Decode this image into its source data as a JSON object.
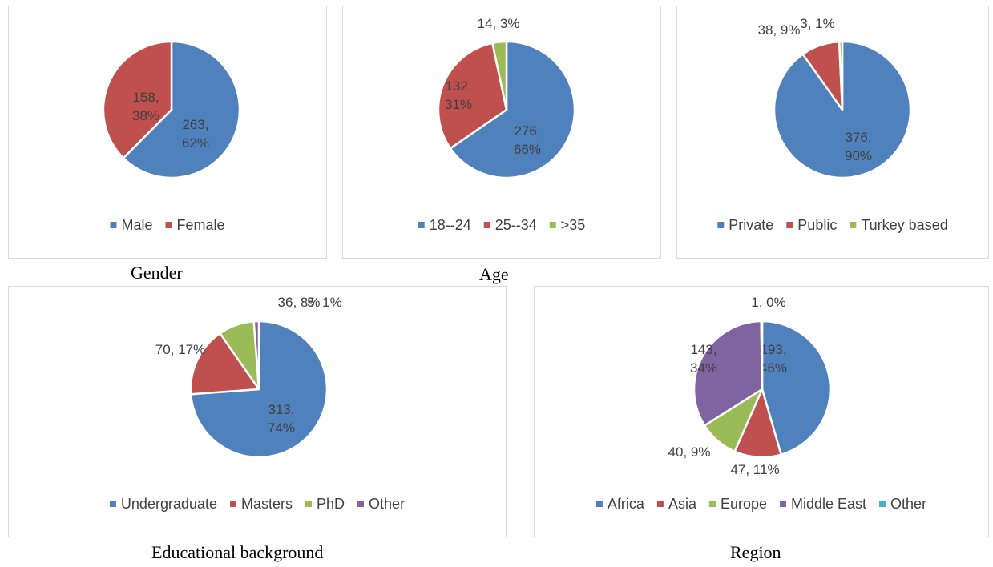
{
  "chart_data": [
    {
      "type": "pie",
      "caption": "Gender",
      "slices": [
        {
          "name": "Male",
          "value": 263,
          "label_lines": [
            "263,",
            "62%"
          ],
          "color": "#4f81bd"
        },
        {
          "name": "Female",
          "value": 158,
          "label_lines": [
            "158,",
            "38%"
          ],
          "color": "#c0504d"
        }
      ],
      "legend": [
        "Male",
        "Female"
      ],
      "legend_position": "bottom"
    },
    {
      "type": "pie",
      "caption": "Age",
      "slices": [
        {
          "name": "18--24",
          "value": 276,
          "label_lines": [
            "276,",
            "66%"
          ],
          "color": "#4f81bd"
        },
        {
          "name": "25--34",
          "value": 132,
          "label_lines": [
            "132,",
            "31%"
          ],
          "color": "#c0504d"
        },
        {
          "name": ">35",
          "value": 14,
          "label_lines": [
            "14, 3%"
          ],
          "color": "#9bbb59"
        }
      ],
      "legend": [
        "18--24",
        "25--34",
        ">35"
      ],
      "legend_position": "bottom"
    },
    {
      "type": "pie",
      "caption": "",
      "slices": [
        {
          "name": "Private",
          "value": 376,
          "label_lines": [
            "376,",
            "90%"
          ],
          "color": "#4f81bd"
        },
        {
          "name": "Public",
          "value": 38,
          "label_lines": [
            "38, 9%"
          ],
          "color": "#c0504d"
        },
        {
          "name": "Turkey based",
          "value": 3,
          "label_lines": [
            "3, 1%"
          ],
          "color": "#9bbb59"
        }
      ],
      "legend": [
        "Private",
        "Public",
        "Turkey based"
      ],
      "legend_position": "bottom"
    },
    {
      "type": "pie",
      "caption": "Educational background",
      "slices": [
        {
          "name": "Undergraduate",
          "value": 313,
          "label_lines": [
            "313,",
            "74%"
          ],
          "color": "#4f81bd"
        },
        {
          "name": "Masters",
          "value": 70,
          "label_lines": [
            "70, 17%"
          ],
          "color": "#c0504d"
        },
        {
          "name": "PhD",
          "value": 36,
          "label_lines": [
            "36, 8%"
          ],
          "color": "#9bbb59"
        },
        {
          "name": "Other",
          "value": 5,
          "label_lines": [
            "5, 1%"
          ],
          "color": "#8064a2"
        }
      ],
      "legend": [
        "Undergraduate",
        "Masters",
        "PhD",
        "Other"
      ],
      "legend_position": "bottom"
    },
    {
      "type": "pie",
      "caption": "Region",
      "slices": [
        {
          "name": "Africa",
          "value": 193,
          "label_lines": [
            "193,",
            "46%"
          ],
          "color": "#4f81bd"
        },
        {
          "name": "Asia",
          "value": 47,
          "label_lines": [
            "47, 11%"
          ],
          "color": "#c0504d"
        },
        {
          "name": "Europe",
          "value": 40,
          "label_lines": [
            "40, 9%"
          ],
          "color": "#9bbb59"
        },
        {
          "name": "Middle East",
          "value": 143,
          "label_lines": [
            "143,",
            "34%"
          ],
          "color": "#8064a2"
        },
        {
          "name": "Other",
          "value": 1,
          "label_lines": [
            "1, 0%"
          ],
          "color": "#4bacc6"
        }
      ],
      "legend": [
        "Africa",
        "Asia",
        "Europe",
        "Middle East",
        "Other"
      ],
      "legend_position": "bottom"
    }
  ]
}
